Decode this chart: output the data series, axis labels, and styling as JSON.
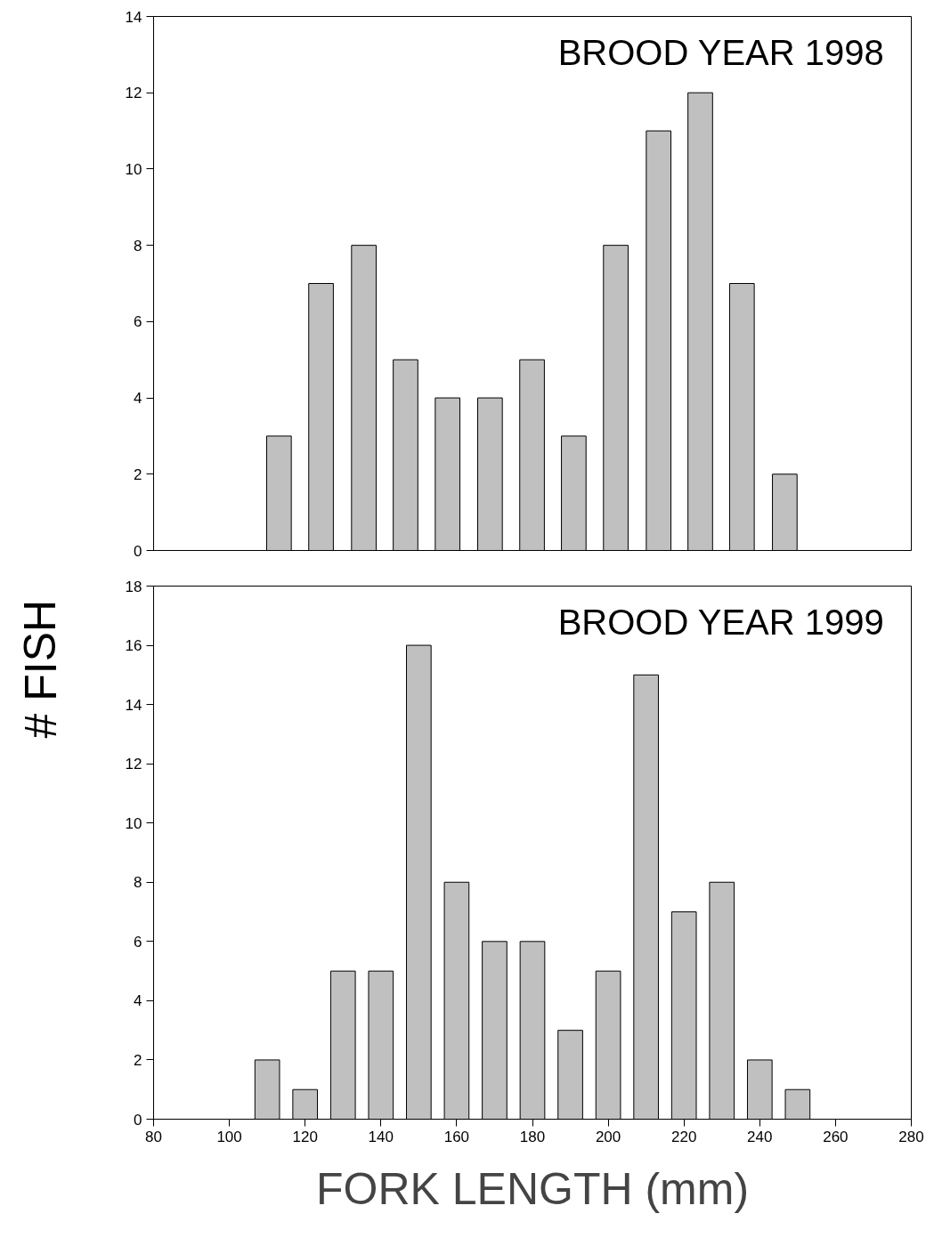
{
  "chart_data": [
    {
      "type": "bar",
      "title": "BROOD YEAR 1998",
      "x": [
        113.1,
        124.2,
        135.5,
        146.5,
        157.6,
        168.8,
        179.9,
        190.9,
        202,
        213.3,
        224.3,
        235.3,
        246.6
      ],
      "values": [
        3,
        7,
        8,
        5,
        4,
        4,
        5,
        3,
        8,
        11,
        12,
        7,
        2
      ],
      "color": "#c0c0c0",
      "xlim": [
        80,
        280
      ],
      "ylim": [
        0,
        14
      ],
      "yticks": [
        0,
        2,
        4,
        6,
        8,
        10,
        12,
        14
      ],
      "tick_labels": "y"
    },
    {
      "type": "bar",
      "title": "BROOD YEAR 1999",
      "xlabel": "FORK LENGTH (mm)",
      "ylabel": "# FISH",
      "x": [
        110,
        120,
        130,
        140,
        150,
        160,
        170,
        180,
        190,
        200,
        210,
        220,
        230,
        240,
        250
      ],
      "values": [
        2,
        1,
        5,
        5,
        16,
        8,
        6,
        6,
        3,
        5,
        15,
        7,
        8,
        2,
        1
      ],
      "color": "#c0c0c0",
      "xlim": [
        80,
        280
      ],
      "ylim": [
        0,
        18
      ],
      "yticks": [
        0,
        2,
        4,
        6,
        8,
        10,
        12,
        14,
        16,
        18
      ],
      "xticks": [
        80,
        100,
        120,
        140,
        160,
        180,
        200,
        220,
        240,
        260,
        280
      ]
    }
  ]
}
